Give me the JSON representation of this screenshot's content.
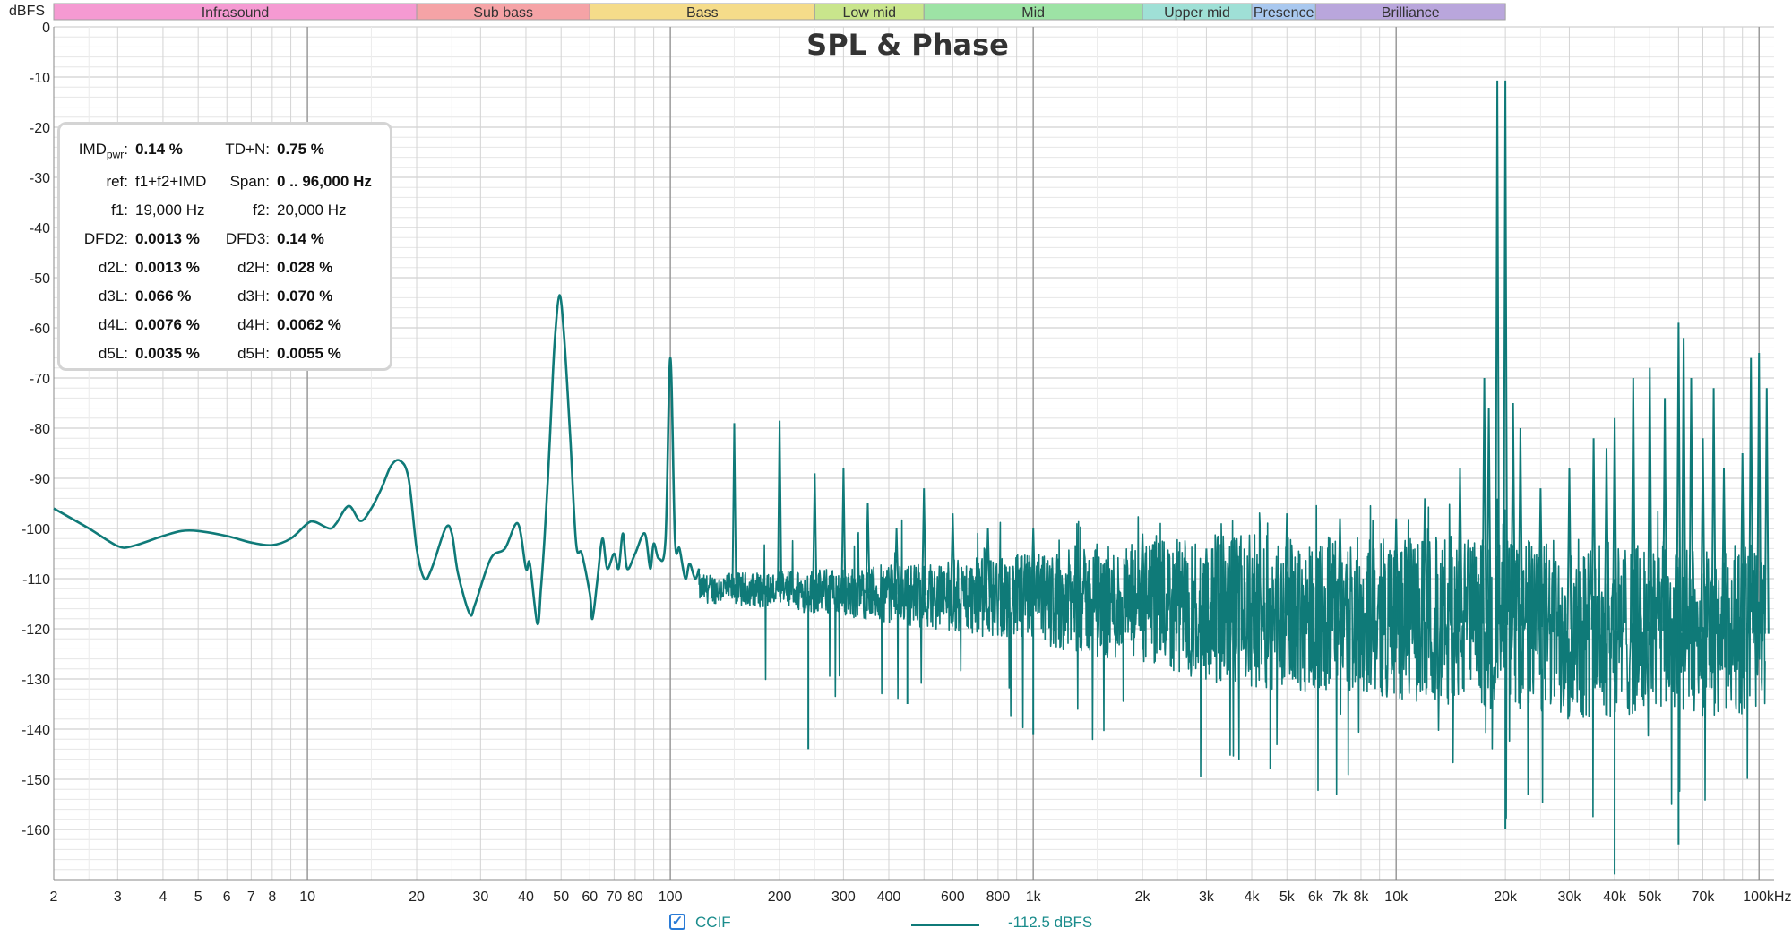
{
  "chart_data": {
    "type": "line",
    "title": "SPL & Phase",
    "ylabel": "dBFS",
    "xscale": "log",
    "xlim": [
      2,
      110000
    ],
    "ylim": [
      -170,
      0
    ],
    "grid": true,
    "y_ticks": [
      "0",
      "-10",
      "-20",
      "-30",
      "-40",
      "-50",
      "-60",
      "-70",
      "-80",
      "-90",
      "-100",
      "-110",
      "-120",
      "-130",
      "-140",
      "-150",
      "-160"
    ],
    "x_ticks": [
      {
        "v": 2,
        "t": "2"
      },
      {
        "v": 3,
        "t": "3"
      },
      {
        "v": 4,
        "t": "4"
      },
      {
        "v": 5,
        "t": "5"
      },
      {
        "v": 6,
        "t": "6"
      },
      {
        "v": 7,
        "t": "7"
      },
      {
        "v": 8,
        "t": "8"
      },
      {
        "v": 10,
        "t": "10"
      },
      {
        "v": 20,
        "t": "20"
      },
      {
        "v": 30,
        "t": "30"
      },
      {
        "v": 40,
        "t": "40"
      },
      {
        "v": 50,
        "t": "50"
      },
      {
        "v": 60,
        "t": "60"
      },
      {
        "v": 70,
        "t": "70"
      },
      {
        "v": 80,
        "t": "80"
      },
      {
        "v": 100,
        "t": "100"
      },
      {
        "v": 200,
        "t": "200"
      },
      {
        "v": 300,
        "t": "300"
      },
      {
        "v": 400,
        "t": "400"
      },
      {
        "v": 600,
        "t": "600"
      },
      {
        "v": 800,
        "t": "800"
      },
      {
        "v": 1000,
        "t": "1k"
      },
      {
        "v": 2000,
        "t": "2k"
      },
      {
        "v": 3000,
        "t": "3k"
      },
      {
        "v": 4000,
        "t": "4k"
      },
      {
        "v": 5000,
        "t": "5k"
      },
      {
        "v": 6000,
        "t": "6k"
      },
      {
        "v": 7000,
        "t": "7k"
      },
      {
        "v": 8000,
        "t": "8k"
      },
      {
        "v": 10000,
        "t": "10k"
      },
      {
        "v": 20000,
        "t": "20k"
      },
      {
        "v": 30000,
        "t": "30k"
      },
      {
        "v": 40000,
        "t": "40k"
      },
      {
        "v": 50000,
        "t": "50k"
      },
      {
        "v": 70000,
        "t": "70k"
      },
      {
        "v": 100000,
        "t": "100kHz"
      }
    ],
    "bands": [
      {
        "name": "Infrasound",
        "from": 2,
        "to": 20,
        "color": "#f59ad2"
      },
      {
        "name": "Sub bass",
        "from": 20,
        "to": 60,
        "color": "#f5a3a6"
      },
      {
        "name": "Bass",
        "from": 60,
        "to": 250,
        "color": "#f5dc8a"
      },
      {
        "name": "Low mid",
        "from": 250,
        "to": 500,
        "color": "#c9e58c"
      },
      {
        "name": "Mid",
        "from": 500,
        "to": 2000,
        "color": "#9de3a5"
      },
      {
        "name": "Upper mid",
        "from": 2000,
        "to": 4000,
        "color": "#9fe0d6"
      },
      {
        "name": "Presence",
        "from": 4000,
        "to": 6000,
        "color": "#a9c8ef"
      },
      {
        "name": "Brilliance",
        "from": 6000,
        "to": 20000,
        "color": "#b9a6dc"
      }
    ],
    "series": [
      {
        "name": "CCIF",
        "color": "#0f7a78",
        "smooth_points": [
          [
            2,
            -96
          ],
          [
            2.5,
            -100
          ],
          [
            3,
            -103.5
          ],
          [
            3.3,
            -103.5
          ],
          [
            4,
            -101.5
          ],
          [
            4.5,
            -100.5
          ],
          [
            5,
            -100.5
          ],
          [
            6,
            -101.5
          ],
          [
            7,
            -102.8
          ],
          [
            8,
            -103.3
          ],
          [
            9,
            -102
          ],
          [
            10,
            -99
          ],
          [
            10.5,
            -98.7
          ],
          [
            11.5,
            -100
          ],
          [
            12,
            -99
          ],
          [
            13,
            -95.5
          ],
          [
            14,
            -98.5
          ],
          [
            15,
            -96
          ],
          [
            16,
            -92
          ],
          [
            17,
            -87.5
          ],
          [
            18,
            -86.5
          ],
          [
            19,
            -90
          ],
          [
            20,
            -104
          ],
          [
            21,
            -110
          ],
          [
            22,
            -108
          ],
          [
            24,
            -100
          ],
          [
            25,
            -101
          ],
          [
            26,
            -109
          ],
          [
            28,
            -117
          ],
          [
            29,
            -115
          ],
          [
            32,
            -106
          ],
          [
            35,
            -104
          ],
          [
            38,
            -99
          ],
          [
            40,
            -108
          ],
          [
            41,
            -107
          ],
          [
            43,
            -119
          ],
          [
            44,
            -112
          ],
          [
            45,
            -102
          ],
          [
            46,
            -90
          ],
          [
            47,
            -76
          ],
          [
            48,
            -63
          ],
          [
            49.5,
            -53.5
          ],
          [
            51,
            -62
          ],
          [
            53,
            -82
          ],
          [
            55,
            -103
          ],
          [
            57,
            -105
          ],
          [
            60,
            -113
          ],
          [
            61,
            -118
          ],
          [
            63,
            -110
          ],
          [
            65,
            -102
          ],
          [
            67,
            -108
          ],
          [
            70,
            -105
          ],
          [
            72,
            -108
          ],
          [
            74,
            -101
          ],
          [
            76,
            -108
          ],
          [
            80,
            -105
          ],
          [
            85,
            -101
          ],
          [
            88,
            -108
          ],
          [
            90,
            -103
          ],
          [
            93,
            -106
          ],
          [
            97,
            -102
          ],
          [
            100,
            -66
          ],
          [
            103,
            -102
          ],
          [
            106,
            -104
          ],
          [
            110,
            -110
          ],
          [
            113,
            -107
          ],
          [
            117,
            -110
          ],
          [
            120,
            -108
          ]
        ],
        "peaks": [
          [
            150,
            -79
          ],
          [
            200,
            -78.5
          ],
          [
            250,
            -89
          ],
          [
            300,
            -88
          ],
          [
            350,
            -95
          ],
          [
            420,
            -100
          ],
          [
            500,
            -92
          ],
          [
            600,
            -97
          ],
          [
            750,
            -100
          ],
          [
            1000,
            -100
          ],
          [
            1500,
            -103
          ],
          [
            2000,
            -101
          ],
          [
            3000,
            -104
          ],
          [
            5000,
            -97
          ],
          [
            7000,
            -98
          ],
          [
            10000,
            -98
          ],
          [
            12000,
            -94
          ],
          [
            15000,
            -88
          ],
          [
            17500,
            -70
          ],
          [
            18000,
            -76
          ],
          [
            19000,
            -10.7
          ],
          [
            20000,
            -10.7
          ],
          [
            21000,
            -75
          ],
          [
            22000,
            -80
          ],
          [
            25000,
            -92
          ],
          [
            30000,
            -88
          ],
          [
            35000,
            -82
          ],
          [
            38000,
            -84
          ],
          [
            40000,
            -78
          ],
          [
            45000,
            -70
          ],
          [
            50000,
            -68
          ],
          [
            55000,
            -74
          ],
          [
            60000,
            -59
          ],
          [
            62000,
            -62
          ],
          [
            65000,
            -70
          ],
          [
            70000,
            -82
          ],
          [
            75000,
            -72
          ],
          [
            80000,
            -88
          ],
          [
            90000,
            -85
          ],
          [
            95000,
            -66
          ],
          [
            100000,
            -65
          ],
          [
            105000,
            -72
          ]
        ],
        "noise_floor_db": [
          [
            150,
            -112
          ],
          [
            1000,
            -114
          ],
          [
            3000,
            -116
          ],
          [
            10000,
            -118
          ],
          [
            30000,
            -120
          ],
          [
            100000,
            -121
          ]
        ],
        "noise_spread_db": [
          [
            150,
            8
          ],
          [
            1000,
            12
          ],
          [
            3000,
            15
          ],
          [
            10000,
            16
          ],
          [
            30000,
            18
          ],
          [
            100000,
            16
          ]
        ],
        "dips": [
          [
            240,
            -144
          ],
          [
            450,
            -135
          ],
          [
            1000,
            -141
          ],
          [
            4500,
            -148
          ],
          [
            20000,
            -160
          ],
          [
            40000,
            -169
          ],
          [
            60000,
            -163
          ]
        ]
      }
    ]
  },
  "stats": [
    {
      "label": "IMD",
      "label_sub": "pwr",
      "value": "0.14 %",
      "bold": true
    },
    {
      "label": "TD+N:",
      "value": "0.75 %",
      "bold": true
    },
    {
      "label": "ref:",
      "value": "f1+f2+IMD",
      "bold": false
    },
    {
      "label": "Span:",
      "value": "0 .. 96,000 Hz",
      "bold": true
    },
    {
      "label": "f1:",
      "value": "19,000 Hz",
      "bold": false
    },
    {
      "label": "f2:",
      "value": "20,000 Hz",
      "bold": false
    },
    {
      "label": "DFD2:",
      "value": "0.0013 %",
      "bold": true
    },
    {
      "label": "DFD3:",
      "value": "0.14 %",
      "bold": true
    },
    {
      "label": "d2L:",
      "value": "0.0013 %",
      "bold": true
    },
    {
      "label": "d2H:",
      "value": "0.028 %",
      "bold": true
    },
    {
      "label": "d3L:",
      "value": "0.066 %",
      "bold": true
    },
    {
      "label": "d3H:",
      "value": "0.070 %",
      "bold": true
    },
    {
      "label": "d4L:",
      "value": "0.0076 %",
      "bold": true
    },
    {
      "label": "d4H:",
      "value": "0.0062 %",
      "bold": true
    },
    {
      "label": "d5L:",
      "value": "0.0035 %",
      "bold": true
    },
    {
      "label": "d5H:",
      "value": "0.0055 %",
      "bold": true
    }
  ],
  "legend": {
    "checkbox_checked": true,
    "check_glyph": "✓",
    "series_name": "CCIF",
    "value_text": "-112.5 dBFS"
  }
}
